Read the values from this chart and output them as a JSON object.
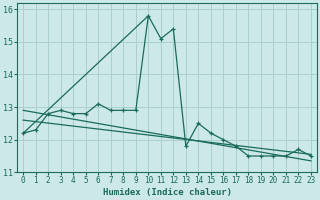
{
  "xlabel": "Humidex (Indice chaleur)",
  "background_color": "#cde8e8",
  "grid_color": "#aacfcf",
  "line_color": "#1a6b5a",
  "xlim": [
    -0.5,
    23.5
  ],
  "ylim": [
    11,
    16.2
  ],
  "xticks": [
    0,
    1,
    2,
    3,
    4,
    5,
    6,
    7,
    8,
    9,
    10,
    11,
    12,
    13,
    14,
    15,
    16,
    17,
    18,
    19,
    20,
    21,
    22,
    23
  ],
  "yticks": [
    11,
    12,
    13,
    14,
    15,
    16
  ],
  "series1": [
    12.2,
    12.3,
    12.8,
    12.9,
    12.8,
    12.8,
    13.1,
    12.9,
    12.9,
    12.9,
    15.8,
    15.1,
    15.4,
    11.8,
    12.5,
    12.2,
    12.0,
    11.8,
    11.5,
    11.5,
    11.5,
    11.5,
    11.7,
    11.5
  ],
  "diag_line": [
    [
      0,
      12.2
    ],
    [
      10,
      15.8
    ]
  ],
  "trend_line1": [
    [
      0,
      12.9
    ],
    [
      23,
      11.35
    ]
  ],
  "trend_line2": [
    [
      0,
      12.6
    ],
    [
      23,
      11.55
    ]
  ]
}
